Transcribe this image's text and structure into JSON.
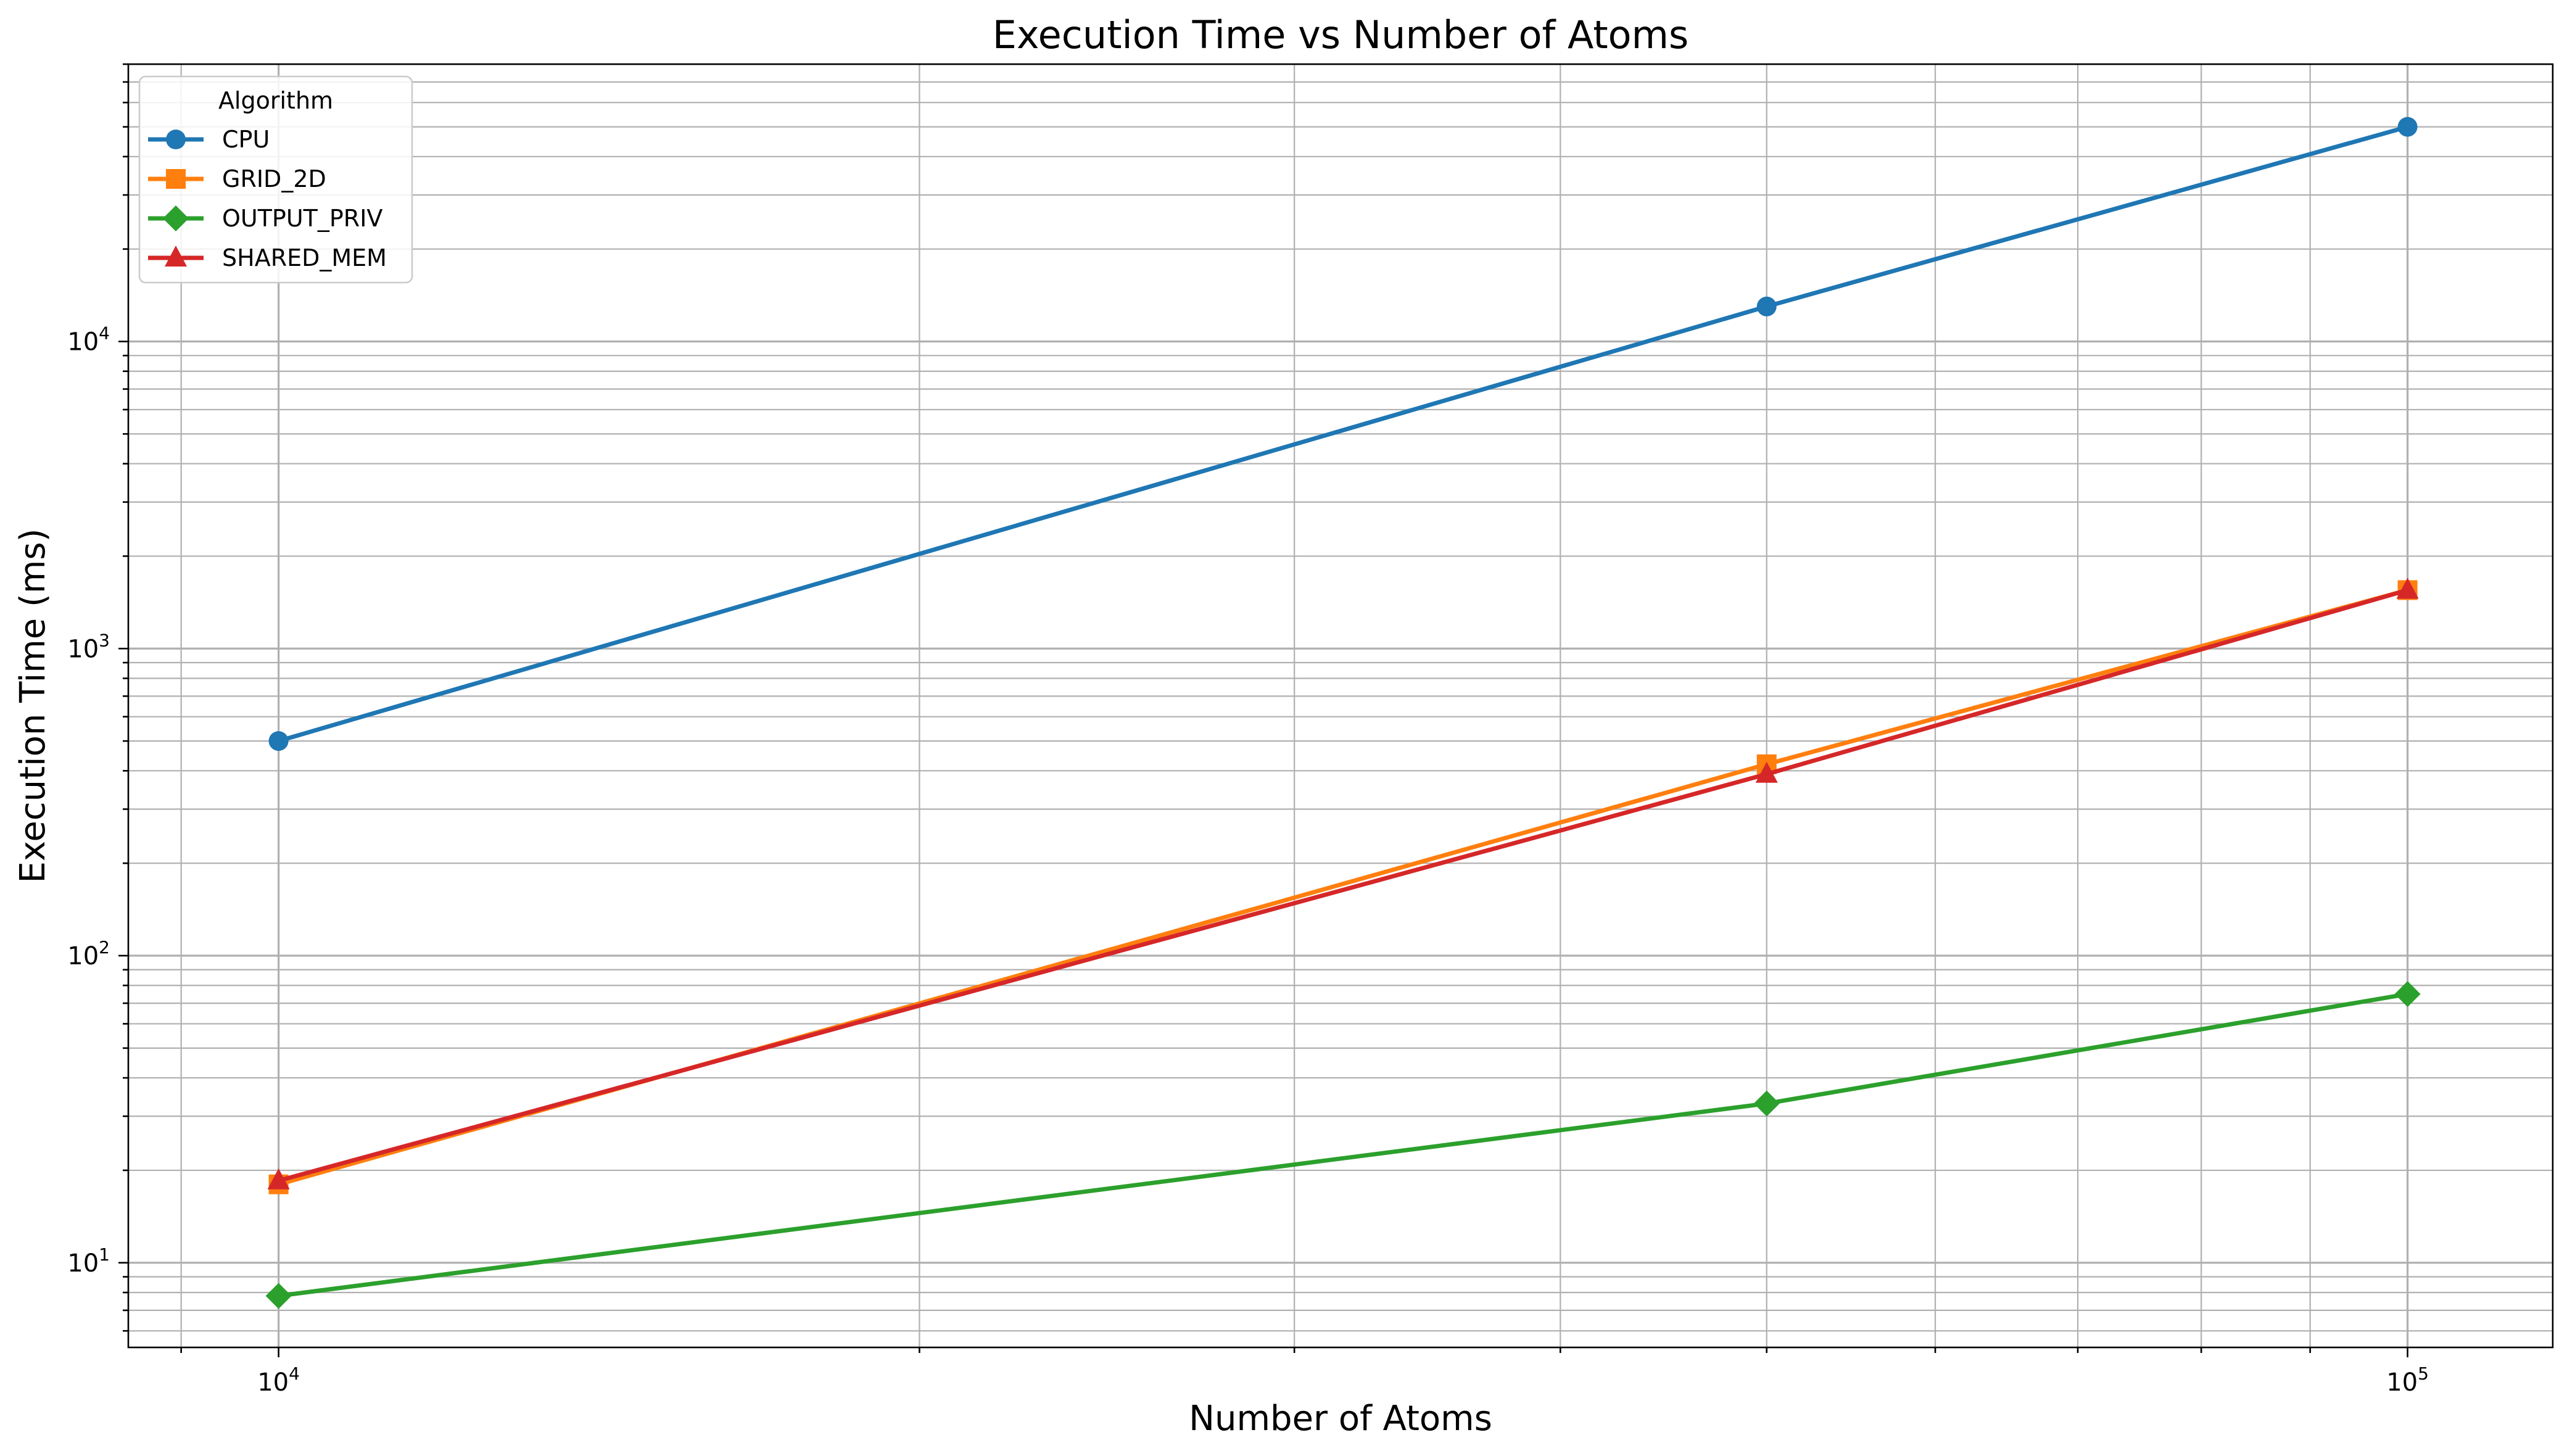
{
  "chart_data": {
    "type": "line",
    "title": "Execution Time vs Number of Atoms",
    "xlabel": "Number of Atoms",
    "ylabel": "Execution Time (ms)",
    "xscale": "log",
    "yscale": "log",
    "xlim": [
      8500,
      117000
    ],
    "ylim": [
      5.3,
      80000
    ],
    "grid": "major and minor, both axes",
    "xticks": [
      {
        "value": 10000,
        "base": "10",
        "exp": "4"
      },
      {
        "value": 100000,
        "base": "10",
        "exp": "5"
      }
    ],
    "yticks": [
      {
        "value": 10,
        "base": "10",
        "exp": "1"
      },
      {
        "value": 100,
        "base": "10",
        "exp": "2"
      },
      {
        "value": 1000,
        "base": "10",
        "exp": "3"
      },
      {
        "value": 10000,
        "base": "10",
        "exp": "4"
      }
    ],
    "legend": {
      "title": "Algorithm",
      "position": "upper-left"
    },
    "x": [
      10000,
      50000,
      100000
    ],
    "series": [
      {
        "name": "CPU",
        "marker": "circle",
        "color": "#1f77b4",
        "values": [
          500,
          13000,
          50000
        ]
      },
      {
        "name": "GRID_2D",
        "marker": "square",
        "color": "#ff7f0e",
        "values": [
          18,
          420,
          1550
        ]
      },
      {
        "name": "OUTPUT_PRIV",
        "marker": "diamond",
        "color": "#2ca02c",
        "values": [
          7.8,
          33,
          75
        ]
      },
      {
        "name": "SHARED_MEM",
        "marker": "triangle",
        "color": "#d62728",
        "values": [
          18.5,
          390,
          1550
        ]
      }
    ]
  }
}
